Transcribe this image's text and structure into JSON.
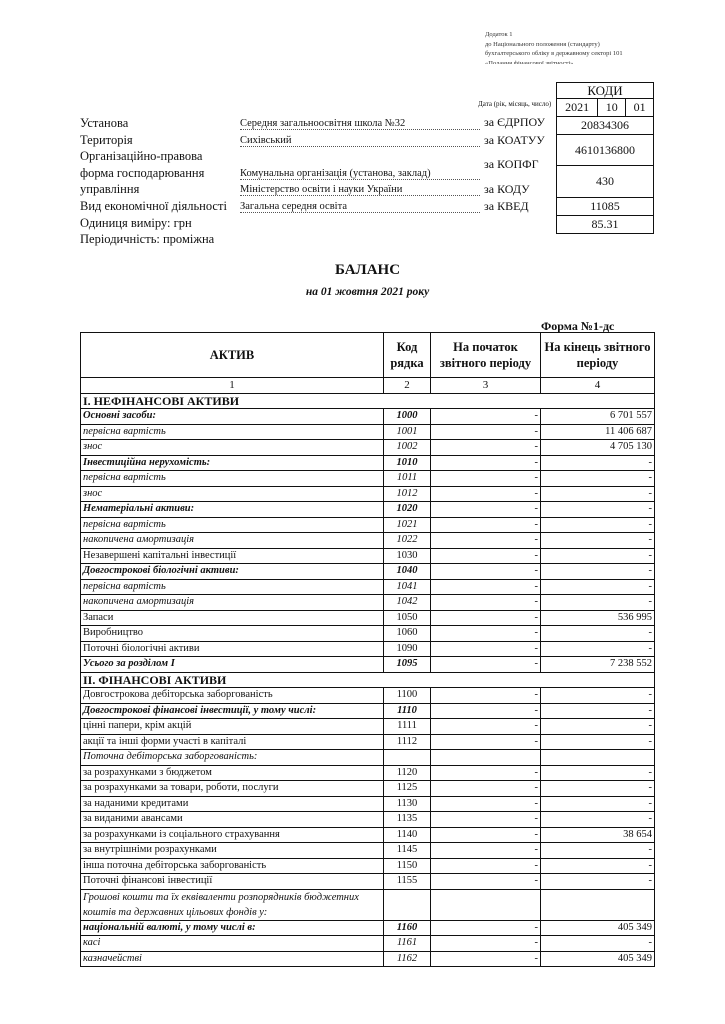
{
  "note": [
    "Додаток 1",
    "до Національного положення (стандарту)",
    "бухгалтерського обліку в державному секторі 101",
    "«Подання фінансової звітності»"
  ],
  "codes": {
    "header": "КОДИ",
    "date_label": "Дата (рік, місяць, число)",
    "year": "2021",
    "month": "10",
    "day": "01",
    "items": [
      {
        "label": "за ЄДРПОУ",
        "value": "20834306"
      },
      {
        "label": "за КОАТУУ",
        "value": "4610136800"
      },
      {
        "label": "за КОПФГ",
        "value": "430"
      },
      {
        "label": "за КОДУ",
        "value": "11085"
      },
      {
        "label": "за КВЕД",
        "value": "85.31"
      }
    ]
  },
  "info": {
    "institution_label": "Установа",
    "institution": "Середня загальноосвітня школа №32",
    "territory_label": "Територія",
    "territory": "Сихівський",
    "legal_form_label_1": "Організаційно-правова",
    "legal_form_label_2": "форма господарювання",
    "legal_form": "Комунальна організація (установа, заклад)",
    "management_label": "управління",
    "management": "Міністерство освіти і науки України",
    "activity_label": "Вид економічної діяльності",
    "activity": "Загальна середня освіта",
    "unit": "Одиниця виміру: грн",
    "periodicity": "Періодичність:  проміжна"
  },
  "title": "БАЛАНС",
  "subtitle": "на  01  жовтня 2021 року",
  "form": "Форма №1-дс",
  "table": {
    "headers": [
      "АКТИВ",
      "Код рядка",
      "На початок звітного періоду",
      "На кінець звітного періоду"
    ],
    "col_numbers": [
      "1",
      "2",
      "3",
      "4"
    ],
    "sections": [
      {
        "title": "І. НЕФІНАНСОВІ АКТИВИ",
        "rows": [
          {
            "label": "Основні засоби:",
            "code": "1000",
            "start": "-",
            "end": "6 701 557",
            "style": "bi"
          },
          {
            "label": "первісна вартість",
            "code": "1001",
            "start": "-",
            "end": "11 406 687",
            "style": "i"
          },
          {
            "label": "знос",
            "code": "1002",
            "start": "-",
            "end": "4 705 130",
            "style": "i"
          },
          {
            "label": "Інвестиційна нерухомість:",
            "code": "1010",
            "start": "-",
            "end": "-",
            "style": "bi"
          },
          {
            "label": "первісна вартість",
            "code": "1011",
            "start": "-",
            "end": "-",
            "style": "i"
          },
          {
            "label": "знос",
            "code": "1012",
            "start": "-",
            "end": "-",
            "style": "i"
          },
          {
            "label": "Нематеріальні активи:",
            "code": "1020",
            "start": "-",
            "end": "-",
            "style": "bi"
          },
          {
            "label": "первісна вартість",
            "code": "1021",
            "start": "-",
            "end": "-",
            "style": "i"
          },
          {
            "label": "накопичена амортизація",
            "code": "1022",
            "start": "-",
            "end": "-",
            "style": "i"
          },
          {
            "label": "Незавершені капітальні інвестиції",
            "code": "1030",
            "start": "-",
            "end": "-",
            "style": "n"
          },
          {
            "label": "Довгострокові біологічні активи:",
            "code": "1040",
            "start": "-",
            "end": "-",
            "style": "bi"
          },
          {
            "label": "первісна вартість",
            "code": "1041",
            "start": "-",
            "end": "-",
            "style": "i"
          },
          {
            "label": "накопичена амортизація",
            "code": "1042",
            "start": "-",
            "end": "-",
            "style": "i"
          },
          {
            "label": "Запаси",
            "code": "1050",
            "start": "-",
            "end": "536 995",
            "style": "n"
          },
          {
            "label": "Виробництво",
            "code": "1060",
            "start": "-",
            "end": "-",
            "style": "n"
          },
          {
            "label": "Поточні біологічні активи",
            "code": "1090",
            "start": "-",
            "end": "-",
            "style": "n"
          },
          {
            "label": "Усього за розділом І",
            "code": "1095",
            "start": "-",
            "end": "7 238 552",
            "style": "bi"
          }
        ]
      },
      {
        "title": "ІІ. ФІНАНСОВІ АКТИВИ",
        "rows": [
          {
            "label": "Довгострокова дебіторська заборгованість",
            "code": "1100",
            "start": "-",
            "end": "-",
            "style": "n"
          },
          {
            "label": "Довгострокові фінансові інвестиції, у тому числі:",
            "code": "1110",
            "start": "-",
            "end": "-",
            "style": "bi"
          },
          {
            "label": "цінні папери, крім акцій",
            "code": "1111",
            "start": "-",
            "end": "-",
            "style": "n"
          },
          {
            "label": "акції та інші форми участі в капіталі",
            "code": "1112",
            "start": "-",
            "end": "-",
            "style": "n"
          },
          {
            "label": "Поточна дебіторська заборгованість:",
            "code": "",
            "start": "",
            "end": "",
            "style": "i"
          },
          {
            "label": "за розрахунками з бюджетом",
            "code": "1120",
            "start": "-",
            "end": "-",
            "style": "n"
          },
          {
            "label": "за розрахунками за товари, роботи, послуги",
            "code": "1125",
            "start": "-",
            "end": "-",
            "style": "n"
          },
          {
            "label": "за наданими кредитами",
            "code": "1130",
            "start": "-",
            "end": "-",
            "style": "n"
          },
          {
            "label": "за виданими авансами",
            "code": "1135",
            "start": "-",
            "end": "-",
            "style": "n"
          },
          {
            "label": "за розрахунками із соціального страхування",
            "code": "1140",
            "start": "-",
            "end": "38 654",
            "style": "n"
          },
          {
            "label": "за внутрішніми розрахунками",
            "code": "1145",
            "start": "-",
            "end": "-",
            "style": "n"
          },
          {
            "label": "інша поточна дебіторська заборгованість",
            "code": "1150",
            "start": "-",
            "end": "-",
            "style": "n"
          },
          {
            "label": "Поточні фінансові інвестиції",
            "code": "1155",
            "start": "-",
            "end": "-",
            "style": "n"
          },
          {
            "label": "Грошові кошти та їх еквіваленти  розпорядників бюджетних коштів та державних цільових фондів у:",
            "code": "",
            "start": "",
            "end": "",
            "style": "i tall"
          },
          {
            "label": "національній валюті, у тому числі в:",
            "code": "1160",
            "start": "-",
            "end": "405 349",
            "style": "bi"
          },
          {
            "label": "касі",
            "code": "1161",
            "start": "-",
            "end": "-",
            "style": "i"
          },
          {
            "label": "казначействі",
            "code": "1162",
            "start": "-",
            "end": "405 349",
            "style": "i"
          }
        ]
      }
    ]
  }
}
